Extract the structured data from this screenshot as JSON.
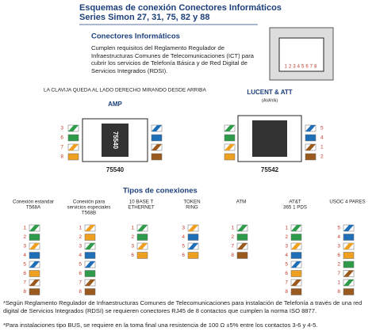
{
  "header": {
    "title": "Esquemas de conexión Conectores Informáticos",
    "subtitle": "Series Simon 27, 31, 75, 82 y 88"
  },
  "intro": {
    "title": "Conectores Informáticos",
    "text": "Cumplen requisitos del Reglamento Regulador de Infraestructuras Comunes de Telecomunicaciones (ICT) para cubrir los servicios de Telefonía Básica y de Red Digital de Servicios Integrados (RDSI).",
    "socket_pins": "12345678"
  },
  "note": "LA CLAVIJA QUEDA AL LADO DERECHO MIRANDO DESDE ARRIBA",
  "connectors": [
    {
      "name": "AMP",
      "code": "75540",
      "body_label": "75540",
      "pins": [
        3,
        6,
        7,
        8
      ]
    },
    {
      "name": "LUCENT & ATT",
      "maker": "(AVAYA)",
      "code": "75542",
      "pins": [
        5,
        4,
        1,
        2
      ]
    }
  ],
  "connections": {
    "title": "Tipos de conexiones",
    "columns": [
      {
        "name": [
          "Conexión estandar",
          "T568A"
        ],
        "pins": [
          1,
          2,
          3,
          4,
          5,
          6,
          7,
          8
        ]
      },
      {
        "name": [
          "Conexión para",
          "servicios especiales",
          "T568B"
        ],
        "pins": [
          1,
          2,
          3,
          4,
          5,
          6,
          7,
          8
        ]
      },
      {
        "name": [
          "10 BASE T",
          "ETHERNET"
        ],
        "pins": [
          1,
          2,
          3,
          6
        ]
      },
      {
        "name": [
          "TOKEN",
          "RING"
        ],
        "pins": [
          3,
          4,
          5,
          6
        ]
      },
      {
        "name": [
          "ATM"
        ],
        "pins": [
          1,
          2,
          7,
          8
        ]
      },
      {
        "name": [
          "AT&T",
          "365 1 PDS"
        ],
        "pins": [
          1,
          2,
          3,
          4,
          5,
          6,
          7,
          8
        ]
      },
      {
        "name": [
          "USOC 4 PARES"
        ],
        "pins": [
          5,
          4,
          3,
          6,
          2,
          7,
          1,
          8
        ]
      }
    ]
  },
  "footnotes": [
    "*Según Reglamento Regulador de Infraestructuras Comunes de Telecomunicaciones para instalación de Telefonía a través de una red digital de Servicios Integrados (RDSI) se requieren conectores RJ45 de 8 contactos que cumplen la norma ISO 8877.",
    "*Para instalaciones tipo BUS, se requiere en la toma final una resistencia de 100 Ω ±5% entre los contactos 3-6 y 4-5."
  ]
}
